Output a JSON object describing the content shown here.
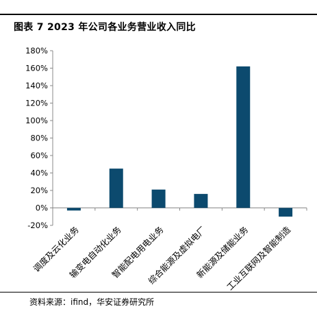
{
  "figure": {
    "title": "图表 7 2023 年公司各业务营业收入同比",
    "source": "资料来源：ifind，华安证券研究所"
  },
  "chart_data": {
    "type": "bar",
    "categories": [
      "调度及云化业务",
      "输变电自动化业务",
      "智能配电用电业务",
      "综合能源及虚拟电厂",
      "新能源及储能业务",
      "工业互联网及智能制造"
    ],
    "values": [
      -3,
      45,
      21,
      16,
      162,
      -10
    ],
    "unit": "%",
    "ylim": [
      -20,
      180
    ],
    "yticks": [
      -20,
      0,
      20,
      40,
      60,
      80,
      100,
      120,
      140,
      160,
      180
    ],
    "ytick_labels": [
      "-20%",
      "0%",
      "20%",
      "40%",
      "60%",
      "80%",
      "100%",
      "120%",
      "140%",
      "160%",
      "180%"
    ],
    "grid": false,
    "legend": "none",
    "colors": {
      "bar": "#0c4a6e",
      "axis": "#888888"
    }
  }
}
